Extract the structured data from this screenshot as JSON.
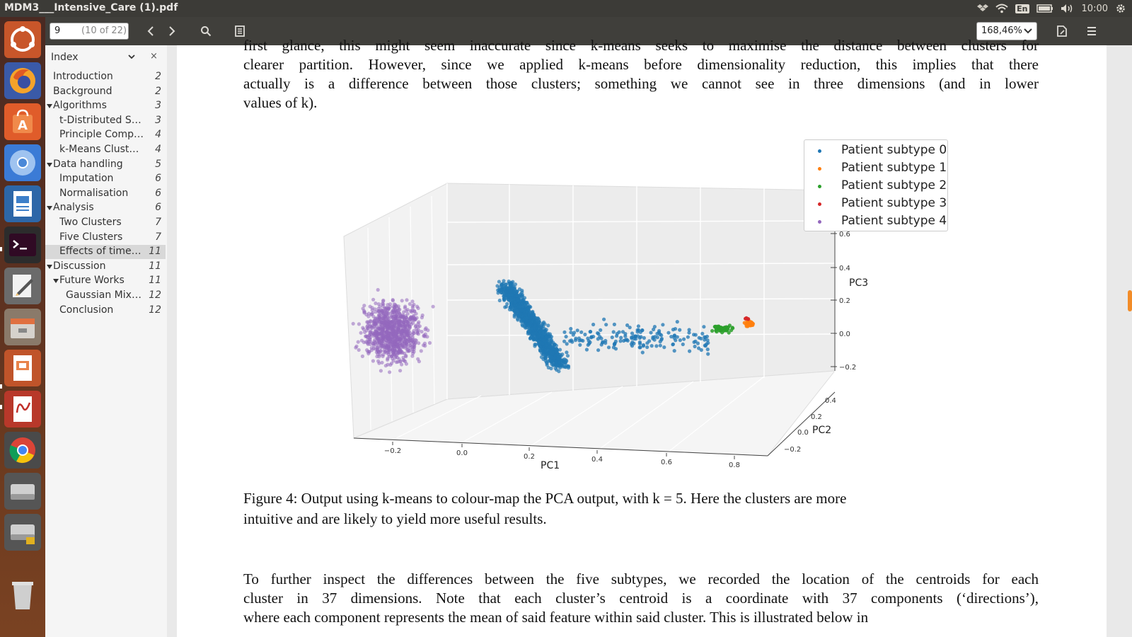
{
  "window": {
    "title": "MDM3___Intensive_Care (1).pdf"
  },
  "tray": {
    "lang": "En",
    "clock": "10:00"
  },
  "toolbar": {
    "page_number": "9",
    "page_of": "(10 of 22)",
    "zoom": "168,46%"
  },
  "sidebar": {
    "title": "Index",
    "items": [
      {
        "label": "Introduction",
        "page": "2",
        "level": 0,
        "expander": false,
        "active": false
      },
      {
        "label": "Background",
        "page": "2",
        "level": 0,
        "expander": false,
        "active": false
      },
      {
        "label": "Algorithms",
        "page": "3",
        "level": 0,
        "expander": true,
        "active": false
      },
      {
        "label": "t-Distributed St...",
        "page": "3",
        "level": 1,
        "expander": false,
        "active": false
      },
      {
        "label": "Principle Compo...",
        "page": "4",
        "level": 1,
        "expander": false,
        "active": false
      },
      {
        "label": "k-Means Clusteri...",
        "page": "4",
        "level": 1,
        "expander": false,
        "active": false
      },
      {
        "label": "Data handling",
        "page": "5",
        "level": 0,
        "expander": true,
        "active": false
      },
      {
        "label": "Imputation",
        "page": "6",
        "level": 1,
        "expander": false,
        "active": false
      },
      {
        "label": "Normalisation",
        "page": "6",
        "level": 1,
        "expander": false,
        "active": false
      },
      {
        "label": "Analysis",
        "page": "6",
        "level": 0,
        "expander": true,
        "active": false
      },
      {
        "label": "Two Clusters",
        "page": "7",
        "level": 1,
        "expander": false,
        "active": false
      },
      {
        "label": "Five Clusters",
        "page": "7",
        "level": 1,
        "expander": false,
        "active": false
      },
      {
        "label": "Effects of time li...",
        "page": "11",
        "level": 1,
        "expander": false,
        "active": true
      },
      {
        "label": "Discussion",
        "page": "11",
        "level": 0,
        "expander": true,
        "active": false
      },
      {
        "label": "Future Works",
        "page": "11",
        "level": 1,
        "expander": true,
        "active": false
      },
      {
        "label": "Gaussian Mixt...",
        "page": "12",
        "level": 2,
        "expander": false,
        "active": false
      },
      {
        "label": "Conclusion",
        "page": "12",
        "level": 1,
        "expander": false,
        "active": false
      }
    ]
  },
  "document": {
    "para1_lines": [
      "first glance, this might seem inaccurate since k-means seeks to maximise the distance between clusters for",
      "clearer partition. However, since we applied k-means before dimensionality reduction, this implies that there",
      "actually is a difference between those clusters; something we cannot see in three dimensions (and in lower",
      "values of k)."
    ],
    "caption_lines": [
      "Figure 4: Output using k-means to colour-map the PCA output, with k = 5. Here the clusters are more",
      "intuitive and are likely to yield more useful results."
    ],
    "para2_lines": [
      "To further inspect the differences between the five subtypes, we recorded the location of the centroids for each",
      "cluster in 37 dimensions. Note that each cluster’s centroid is a coordinate with 37 components (‘directions’),",
      "where each component represents the mean of said feature within said cluster. This is illustrated below in"
    ]
  },
  "chart_data": {
    "type": "scatter",
    "dimensions": 3,
    "xlabel": "PC1",
    "ylabel": "PC2",
    "zlabel": "PC3",
    "x_ticks": [
      "−0.2",
      "0.0",
      "0.2",
      "0.4",
      "0.6",
      "0.8"
    ],
    "y_ticks": [
      "−0.2",
      "0.0",
      "0.2",
      "0.4"
    ],
    "z_ticks": [
      "−0.2",
      "0.0",
      "0.2",
      "0.4",
      "0.6"
    ],
    "legend_position": "top-right",
    "series": [
      {
        "name": "Patient subtype 0",
        "color": "#1f77b4",
        "approx_center_pc1": 0.2,
        "approx_center_pc3": 0.05,
        "spread": "elongated, trailing toward PC1 0.7"
      },
      {
        "name": "Patient subtype 1",
        "color": "#ff7f0e",
        "approx_center_pc1": 0.85,
        "approx_center_pc3": 0.05,
        "spread": "tight"
      },
      {
        "name": "Patient subtype 2",
        "color": "#2ca02c",
        "approx_center_pc1": 0.78,
        "approx_center_pc3": 0.0,
        "spread": "tight"
      },
      {
        "name": "Patient subtype 3",
        "color": "#d62728",
        "approx_center_pc1": 0.85,
        "approx_center_pc3": 0.1,
        "spread": "very small"
      },
      {
        "name": "Patient subtype 4",
        "color": "#9467bd",
        "approx_center_pc1": -0.2,
        "approx_center_pc3": 0.0,
        "spread": "broad"
      }
    ]
  }
}
